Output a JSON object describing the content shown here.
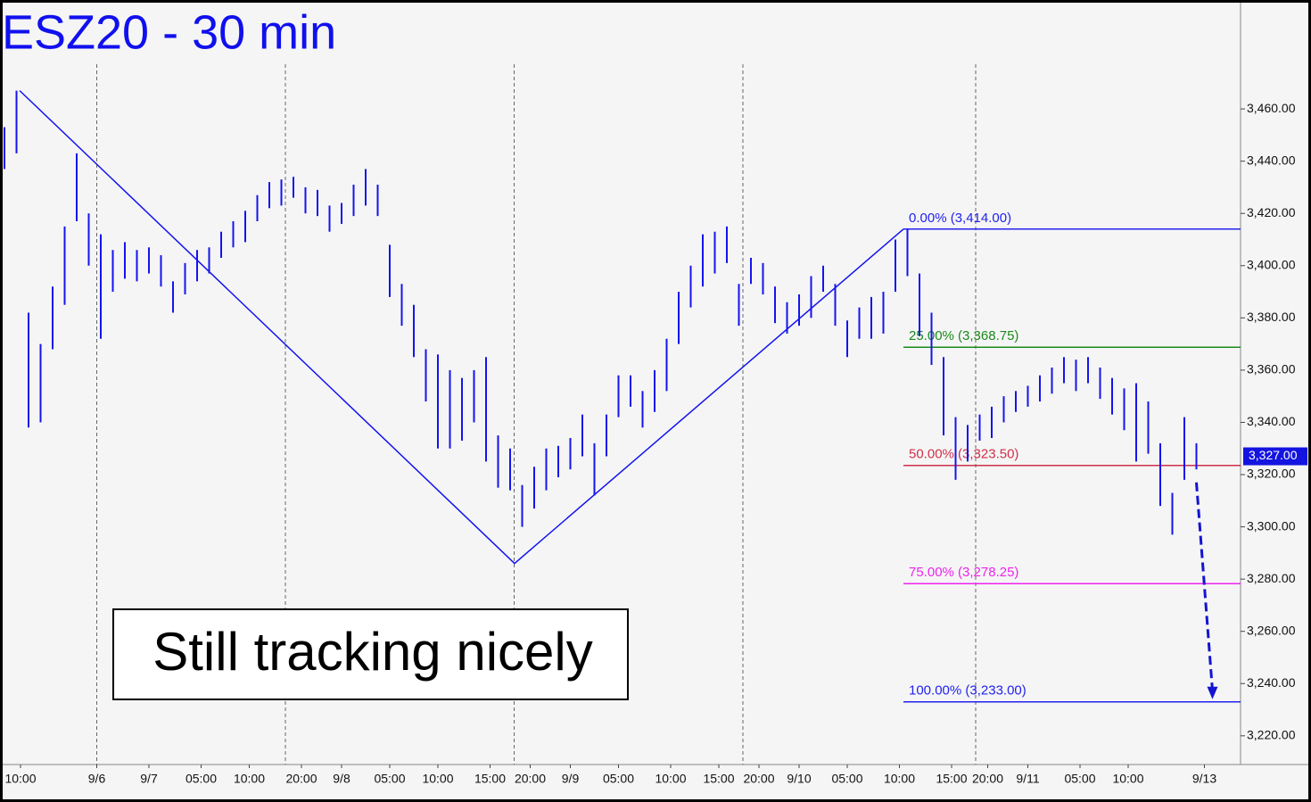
{
  "chart_data": {
    "type": "ohlc-range",
    "title": "ESZ20 - 30 min",
    "annotation": "Still tracking nicely",
    "color": "#1414f0",
    "xlim": [
      0,
      308
    ],
    "ylim": [
      3209,
      3500
    ],
    "yticks": [
      {
        "value": 3220,
        "label": "3,220.00"
      },
      {
        "value": 3240,
        "label": "3,240.00"
      },
      {
        "value": 3260,
        "label": "3,260.00"
      },
      {
        "value": 3280,
        "label": "3,280.00"
      },
      {
        "value": 3300,
        "label": "3,300.00"
      },
      {
        "value": 3320,
        "label": "3,320.00"
      },
      {
        "value": 3340,
        "label": "3,340.00"
      },
      {
        "value": 3360,
        "label": "3,360.00"
      },
      {
        "value": 3380,
        "label": "3,380.00"
      },
      {
        "value": 3400,
        "label": "3,400.00"
      },
      {
        "value": 3420,
        "label": "3,420.00"
      },
      {
        "value": 3440,
        "label": "3,440.00"
      },
      {
        "value": 3460,
        "label": "3,460.00"
      }
    ],
    "xticks": [
      {
        "value": 4,
        "label": "10:00"
      },
      {
        "value": 23,
        "label": "9/6"
      },
      {
        "value": 36,
        "label": "9/7"
      },
      {
        "value": 49,
        "label": "05:00"
      },
      {
        "value": 61,
        "label": "10:00"
      },
      {
        "value": 74,
        "label": "20:00"
      },
      {
        "value": 84,
        "label": "9/8"
      },
      {
        "value": 96,
        "label": "05:00"
      },
      {
        "value": 108,
        "label": "10:00"
      },
      {
        "value": 121,
        "label": "15:00"
      },
      {
        "value": 131,
        "label": "20:00"
      },
      {
        "value": 141,
        "label": "9/9"
      },
      {
        "value": 153,
        "label": "05:00"
      },
      {
        "value": 166,
        "label": "10:00"
      },
      {
        "value": 178,
        "label": "15:00"
      },
      {
        "value": 188,
        "label": "20:00"
      },
      {
        "value": 198,
        "label": "9/10"
      },
      {
        "value": 210,
        "label": "05:00"
      },
      {
        "value": 223,
        "label": "10:00"
      },
      {
        "value": 236,
        "label": "15:00"
      },
      {
        "value": 245,
        "label": "20:00"
      },
      {
        "value": 255,
        "label": "9/11"
      },
      {
        "value": 268,
        "label": "05:00"
      },
      {
        "value": 280,
        "label": "10:00"
      },
      {
        "value": 299,
        "label": "9/13"
      }
    ],
    "day_lines": [
      23,
      70,
      127,
      184,
      242
    ],
    "x": [
      0,
      3,
      6,
      9,
      12,
      15,
      18,
      21,
      24,
      27,
      30,
      33,
      36,
      39,
      42,
      45,
      48,
      51,
      54,
      57,
      60,
      63,
      66,
      69,
      72,
      75,
      78,
      81,
      84,
      87,
      90,
      93,
      96,
      99,
      102,
      105,
      108,
      111,
      114,
      117,
      120,
      123,
      126,
      129,
      132,
      135,
      138,
      141,
      144,
      147,
      150,
      153,
      156,
      159,
      162,
      165,
      168,
      171,
      174,
      177,
      180,
      183,
      186,
      189,
      192,
      195,
      198,
      201,
      204,
      207,
      210,
      213,
      216,
      219,
      222,
      225,
      228,
      231,
      234,
      237,
      240,
      243,
      246,
      249,
      252,
      255,
      258,
      261,
      264,
      267,
      270,
      273,
      276,
      279,
      282,
      285,
      288,
      291,
      294,
      297
    ],
    "high": [
      3453,
      3467,
      3382,
      3370,
      3392,
      3415,
      3443,
      3420,
      3412,
      3406,
      3409,
      3406,
      3407,
      3404,
      3394,
      3401,
      3406,
      3407,
      3413,
      3417,
      3421,
      3427,
      3432,
      3433,
      3434,
      3430,
      3429,
      3423,
      3424,
      3431,
      3437,
      3431,
      3408,
      3393,
      3385,
      3368,
      3366,
      3360,
      3357,
      3360,
      3365,
      3335,
      3330,
      3316,
      3323,
      3330,
      3331,
      3334,
      3343,
      3332,
      3343,
      3358,
      3358,
      3352,
      3360,
      3372,
      3390,
      3400,
      3412,
      3413,
      3415,
      3393,
      3403,
      3401,
      3392,
      3386,
      3389,
      3396,
      3400,
      3393,
      3379,
      3384,
      3388,
      3390,
      3410,
      3414,
      3397,
      3382,
      3365,
      3342,
      3339,
      3343,
      3346,
      3350,
      3352,
      3354,
      3358,
      3361,
      3365,
      3364,
      3365,
      3361,
      3357,
      3353,
      3355,
      3348,
      3332,
      3313,
      3342,
      3332
    ],
    "low": [
      3437,
      3443,
      3338,
      3340,
      3368,
      3385,
      3417,
      3400,
      3372,
      3390,
      3395,
      3394,
      3397,
      3392,
      3382,
      3389,
      3394,
      3397,
      3403,
      3407,
      3409,
      3417,
      3422,
      3423,
      3426,
      3420,
      3419,
      3413,
      3416,
      3419,
      3423,
      3419,
      3388,
      3377,
      3365,
      3348,
      3330,
      3330,
      3333,
      3340,
      3325,
      3315,
      3314,
      3300,
      3307,
      3314,
      3319,
      3322,
      3327,
      3312,
      3327,
      3342,
      3346,
      3338,
      3344,
      3352,
      3370,
      3384,
      3392,
      3397,
      3401,
      3377,
      3393,
      3389,
      3378,
      3374,
      3377,
      3380,
      3390,
      3377,
      3365,
      3372,
      3372,
      3374,
      3390,
      3396,
      3373,
      3362,
      3335,
      3318,
      3325,
      3333,
      3334,
      3340,
      3344,
      3346,
      3348,
      3351,
      3355,
      3352,
      3355,
      3349,
      3343,
      3337,
      3325,
      3328,
      3308,
      3297,
      3318,
      3322
    ],
    "trendline": {
      "x": [
        3.8,
        127.1,
        224
      ],
      "y": [
        3467,
        3286,
        3414
      ]
    },
    "fib_start": 224,
    "fib_levels": [
      {
        "label": "0.00% (3,414.00)",
        "value": 3414,
        "color": "#2222ee"
      },
      {
        "label": "25.00% (3,368.75)",
        "value": 3368.75,
        "color": "#1a8a1a"
      },
      {
        "label": "50.00% (3,323.50)",
        "value": 3323.5,
        "color": "#d0304a"
      },
      {
        "label": "75.00% (3,278.25)",
        "value": 3278.25,
        "color": "#ee22ee"
      },
      {
        "label": "100.00% (3,233.00)",
        "value": 3233,
        "color": "#2222ee"
      }
    ],
    "arrow": {
      "x": [
        297,
        301
      ],
      "y": [
        3317,
        3234
      ]
    },
    "last_price": {
      "value": 3327,
      "label": "3,327.00"
    }
  }
}
